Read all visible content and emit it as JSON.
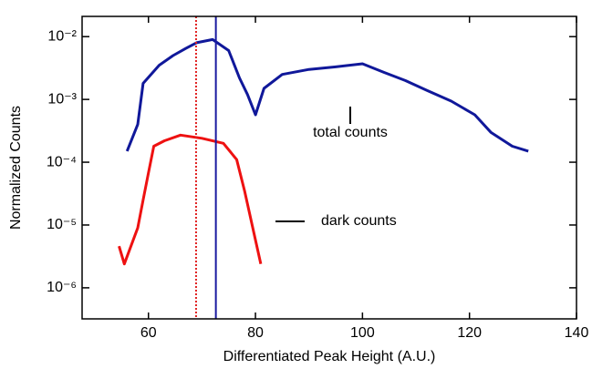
{
  "chart_data": {
    "type": "line",
    "xlabel": "Differentiated Peak Height (A.U.)",
    "ylabel": "Normalized Counts",
    "log_y": true,
    "xlim": [
      47.6,
      140
    ],
    "xticks": [
      60,
      80,
      100,
      120,
      140
    ],
    "ylim": [
      3.2e-07,
      0.021
    ],
    "yticks": [
      {
        "value": 0.01,
        "label": "10⁻²"
      },
      {
        "value": 0.001,
        "label": "10⁻³"
      },
      {
        "value": 0.0001,
        "label": "10⁻⁴"
      },
      {
        "value": 1e-05,
        "label": "10⁻⁵"
      },
      {
        "value": 1e-06,
        "label": "10⁻⁶"
      }
    ],
    "series": [
      {
        "name": "total counts",
        "color": "#10189a",
        "x": [
          56,
          58,
          59,
          62,
          64.6,
          67,
          69,
          72,
          75,
          77,
          78.5,
          80,
          81.6,
          85,
          90,
          95,
          100,
          104,
          108,
          112,
          116.6,
          121,
          124,
          128,
          131
        ],
        "values": [
          0.00015,
          0.0004,
          0.0018,
          0.0035,
          0.005,
          0.0065,
          0.008,
          0.009,
          0.006,
          0.0022,
          0.0012,
          0.00057,
          0.0015,
          0.0025,
          0.003,
          0.0033,
          0.0037,
          0.0027,
          0.002,
          0.0014,
          0.00094,
          0.00057,
          0.0003,
          0.00018,
          0.00015
        ]
      },
      {
        "name": "dark counts",
        "color": "#ee1111",
        "x": [
          54.5,
          55.5,
          58,
          59,
          60,
          61,
          63,
          66,
          70,
          74,
          76.5,
          78,
          79.5,
          81
        ],
        "values": [
          4.6e-06,
          2.4e-06,
          9e-06,
          2.5e-05,
          6.7e-05,
          0.00018,
          0.00022,
          0.00027,
          0.00024,
          0.0002,
          0.00011,
          3.4e-05,
          9e-06,
          2.4e-06
        ]
      }
    ],
    "vlines": [
      {
        "x": 68.9,
        "color": "#e02020",
        "style": "dotted"
      },
      {
        "x": 72.6,
        "color": "#1a1aa0",
        "style": "solid"
      }
    ],
    "annotations": [
      "total counts",
      "dark counts"
    ]
  }
}
